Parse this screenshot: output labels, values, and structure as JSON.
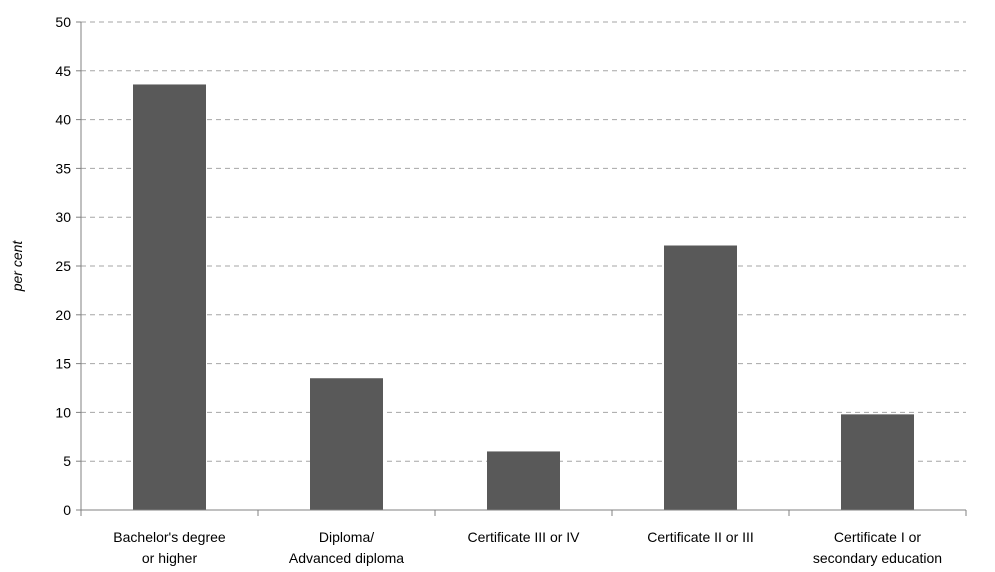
{
  "chart_data": {
    "type": "bar",
    "title": "",
    "xlabel": "",
    "ylabel": "per cent",
    "ylim": [
      0,
      50
    ],
    "yticks": [
      0,
      5,
      10,
      15,
      20,
      25,
      30,
      35,
      40,
      45,
      50
    ],
    "grid": "horizontal dashed",
    "legend": "none",
    "bar_color": "#595959",
    "categories": [
      [
        "Bachelor's degree",
        "or higher"
      ],
      [
        "Diploma/",
        "Advanced diploma"
      ],
      [
        "Certificate III or IV"
      ],
      [
        "Certificate II or III"
      ],
      [
        "Certificate I or",
        "secondary education"
      ]
    ],
    "values": [
      43.6,
      13.5,
      6.0,
      27.1,
      9.8
    ]
  }
}
